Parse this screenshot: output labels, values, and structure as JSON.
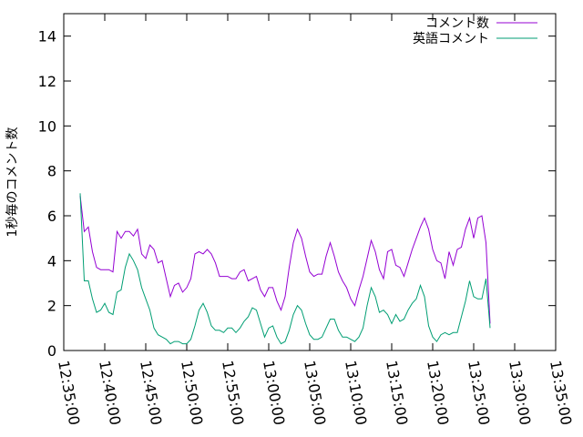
{
  "chart_data": {
    "type": "line",
    "title": "",
    "xlabel": "",
    "ylabel": "1秒毎のコメント数",
    "ylim": [
      0,
      15
    ],
    "y_ticks": [
      "0",
      "2",
      "4",
      "6",
      "8",
      "10",
      "12",
      "14"
    ],
    "x_ticks": [
      "12:35:00",
      "12:40:00",
      "12:45:00",
      "12:50:00",
      "12:55:00",
      "13:00:00",
      "13:05:00",
      "13:10:00",
      "13:15:00",
      "13:20:00",
      "13:25:00",
      "13:30:00",
      "13:35:00"
    ],
    "grid": false,
    "legend_position": "top-right",
    "series": [
      {
        "name": "コメント数",
        "color": "#9400d3",
        "points": [
          [
            2.0,
            6.9
          ],
          [
            2.5,
            5.3
          ],
          [
            3.0,
            5.5
          ],
          [
            3.5,
            4.4
          ],
          [
            4.0,
            3.7
          ],
          [
            4.5,
            3.6
          ],
          [
            5.0,
            3.6
          ],
          [
            5.5,
            3.6
          ],
          [
            6.0,
            3.5
          ],
          [
            6.5,
            5.3
          ],
          [
            7.0,
            5.0
          ],
          [
            7.5,
            5.3
          ],
          [
            8.0,
            5.3
          ],
          [
            8.5,
            5.1
          ],
          [
            9.0,
            5.4
          ],
          [
            9.5,
            4.3
          ],
          [
            10.0,
            4.1
          ],
          [
            10.5,
            4.7
          ],
          [
            11.0,
            4.5
          ],
          [
            11.5,
            3.9
          ],
          [
            12.0,
            4.0
          ],
          [
            12.5,
            3.2
          ],
          [
            13.0,
            2.4
          ],
          [
            13.5,
            2.9
          ],
          [
            14.0,
            3.0
          ],
          [
            14.5,
            2.6
          ],
          [
            15.0,
            2.8
          ],
          [
            15.5,
            3.2
          ],
          [
            16.0,
            4.3
          ],
          [
            16.5,
            4.4
          ],
          [
            17.0,
            4.3
          ],
          [
            17.5,
            4.5
          ],
          [
            18.0,
            4.3
          ],
          [
            18.5,
            3.9
          ],
          [
            19.0,
            3.3
          ],
          [
            19.5,
            3.3
          ],
          [
            20.0,
            3.3
          ],
          [
            20.5,
            3.2
          ],
          [
            21.0,
            3.2
          ],
          [
            21.5,
            3.5
          ],
          [
            22.0,
            3.6
          ],
          [
            22.5,
            3.1
          ],
          [
            23.0,
            3.2
          ],
          [
            23.5,
            3.3
          ],
          [
            24.0,
            2.7
          ],
          [
            24.5,
            2.4
          ],
          [
            25.0,
            2.8
          ],
          [
            25.5,
            2.8
          ],
          [
            26.0,
            2.2
          ],
          [
            26.5,
            1.8
          ],
          [
            27.0,
            2.4
          ],
          [
            27.5,
            3.7
          ],
          [
            28.0,
            4.8
          ],
          [
            28.5,
            5.4
          ],
          [
            29.0,
            5.0
          ],
          [
            29.5,
            4.2
          ],
          [
            30.0,
            3.5
          ],
          [
            30.5,
            3.3
          ],
          [
            31.0,
            3.4
          ],
          [
            31.5,
            3.4
          ],
          [
            32.0,
            4.2
          ],
          [
            32.5,
            4.8
          ],
          [
            33.0,
            4.2
          ],
          [
            33.5,
            3.5
          ],
          [
            34.0,
            3.1
          ],
          [
            34.5,
            2.8
          ],
          [
            35.0,
            2.3
          ],
          [
            35.5,
            2.0
          ],
          [
            36.0,
            2.7
          ],
          [
            36.5,
            3.3
          ],
          [
            37.0,
            4.1
          ],
          [
            37.5,
            4.9
          ],
          [
            38.0,
            4.4
          ],
          [
            38.5,
            3.6
          ],
          [
            39.0,
            3.2
          ],
          [
            39.5,
            4.4
          ],
          [
            40.0,
            4.5
          ],
          [
            40.5,
            3.8
          ],
          [
            41.0,
            3.7
          ],
          [
            41.5,
            3.3
          ],
          [
            42.0,
            3.9
          ],
          [
            42.5,
            4.5
          ],
          [
            43.0,
            5.0
          ],
          [
            43.5,
            5.5
          ],
          [
            44.0,
            5.9
          ],
          [
            44.5,
            5.4
          ],
          [
            45.0,
            4.5
          ],
          [
            45.5,
            4.0
          ],
          [
            46.0,
            3.9
          ],
          [
            46.5,
            3.2
          ],
          [
            47.0,
            4.4
          ],
          [
            47.5,
            3.8
          ],
          [
            48.0,
            4.5
          ],
          [
            48.5,
            4.6
          ],
          [
            49.0,
            5.4
          ],
          [
            49.5,
            5.9
          ],
          [
            50.0,
            5.0
          ],
          [
            50.5,
            5.9
          ],
          [
            51.0,
            6.0
          ],
          [
            51.5,
            4.8
          ],
          [
            52.0,
            1.2
          ]
        ]
      },
      {
        "name": "英語コメント",
        "color": "#009e73",
        "points": [
          [
            2.0,
            7.0
          ],
          [
            2.5,
            3.1
          ],
          [
            3.0,
            3.1
          ],
          [
            3.5,
            2.3
          ],
          [
            4.0,
            1.7
          ],
          [
            4.5,
            1.8
          ],
          [
            5.0,
            2.1
          ],
          [
            5.5,
            1.7
          ],
          [
            6.0,
            1.6
          ],
          [
            6.5,
            2.6
          ],
          [
            7.0,
            2.7
          ],
          [
            7.5,
            3.7
          ],
          [
            8.0,
            4.3
          ],
          [
            8.5,
            4.0
          ],
          [
            9.0,
            3.6
          ],
          [
            9.5,
            2.8
          ],
          [
            10.0,
            2.3
          ],
          [
            10.5,
            1.8
          ],
          [
            11.0,
            1.0
          ],
          [
            11.5,
            0.7
          ],
          [
            12.0,
            0.6
          ],
          [
            12.5,
            0.5
          ],
          [
            13.0,
            0.3
          ],
          [
            13.5,
            0.4
          ],
          [
            14.0,
            0.4
          ],
          [
            14.5,
            0.3
          ],
          [
            15.0,
            0.3
          ],
          [
            15.5,
            0.5
          ],
          [
            16.0,
            1.1
          ],
          [
            16.5,
            1.8
          ],
          [
            17.0,
            2.1
          ],
          [
            17.5,
            1.7
          ],
          [
            18.0,
            1.1
          ],
          [
            18.5,
            0.9
          ],
          [
            19.0,
            0.9
          ],
          [
            19.5,
            0.8
          ],
          [
            20.0,
            1.0
          ],
          [
            20.5,
            1.0
          ],
          [
            21.0,
            0.8
          ],
          [
            21.5,
            1.0
          ],
          [
            22.0,
            1.3
          ],
          [
            22.5,
            1.5
          ],
          [
            23.0,
            1.9
          ],
          [
            23.5,
            1.8
          ],
          [
            24.0,
            1.2
          ],
          [
            24.5,
            0.6
          ],
          [
            25.0,
            1.0
          ],
          [
            25.5,
            1.1
          ],
          [
            26.0,
            0.6
          ],
          [
            26.5,
            0.3
          ],
          [
            27.0,
            0.4
          ],
          [
            27.5,
            0.9
          ],
          [
            28.0,
            1.6
          ],
          [
            28.5,
            2.0
          ],
          [
            29.0,
            1.8
          ],
          [
            29.5,
            1.2
          ],
          [
            30.0,
            0.7
          ],
          [
            30.5,
            0.5
          ],
          [
            31.0,
            0.5
          ],
          [
            31.5,
            0.6
          ],
          [
            32.0,
            1.0
          ],
          [
            32.5,
            1.4
          ],
          [
            33.0,
            1.4
          ],
          [
            33.5,
            0.9
          ],
          [
            34.0,
            0.6
          ],
          [
            34.5,
            0.6
          ],
          [
            35.0,
            0.5
          ],
          [
            35.5,
            0.4
          ],
          [
            36.0,
            0.6
          ],
          [
            36.5,
            1.0
          ],
          [
            37.0,
            2.0
          ],
          [
            37.5,
            2.8
          ],
          [
            38.0,
            2.4
          ],
          [
            38.5,
            1.7
          ],
          [
            39.0,
            1.8
          ],
          [
            39.5,
            1.6
          ],
          [
            40.0,
            1.2
          ],
          [
            40.5,
            1.6
          ],
          [
            41.0,
            1.3
          ],
          [
            41.5,
            1.4
          ],
          [
            42.0,
            1.8
          ],
          [
            42.5,
            2.1
          ],
          [
            43.0,
            2.3
          ],
          [
            43.5,
            2.9
          ],
          [
            44.0,
            2.4
          ],
          [
            44.5,
            1.1
          ],
          [
            45.0,
            0.6
          ],
          [
            45.5,
            0.4
          ],
          [
            46.0,
            0.7
          ],
          [
            46.5,
            0.8
          ],
          [
            47.0,
            0.7
          ],
          [
            47.5,
            0.8
          ],
          [
            48.0,
            0.8
          ],
          [
            48.5,
            1.5
          ],
          [
            49.0,
            2.2
          ],
          [
            49.5,
            3.1
          ],
          [
            50.0,
            2.4
          ],
          [
            50.5,
            2.3
          ],
          [
            51.0,
            2.3
          ],
          [
            51.5,
            3.2
          ],
          [
            52.0,
            1.0
          ]
        ]
      }
    ]
  }
}
